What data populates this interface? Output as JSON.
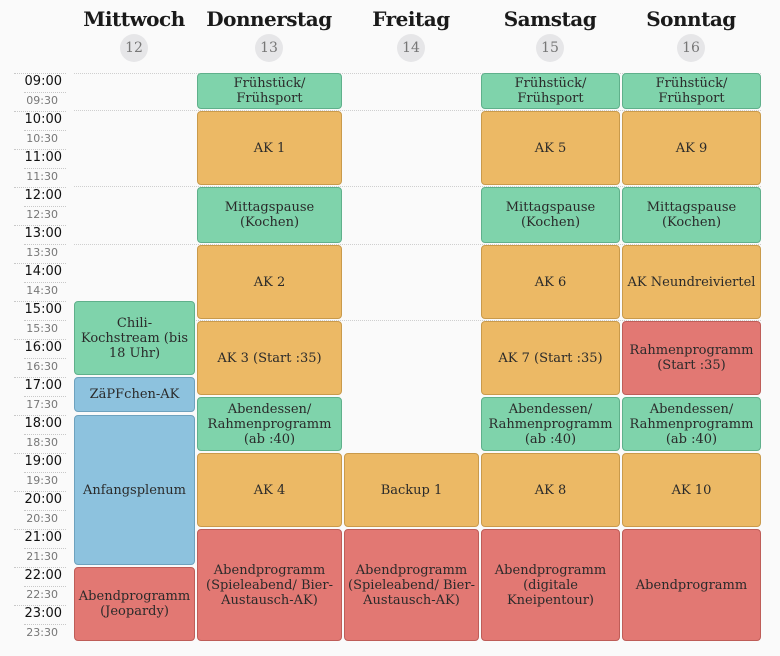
{
  "days": [
    {
      "name": "Mittwoch",
      "num": "12"
    },
    {
      "name": "Donnerstag",
      "num": "13"
    },
    {
      "name": "Freitag",
      "num": "14"
    },
    {
      "name": "Samstag",
      "num": "15"
    },
    {
      "name": "Sonntag",
      "num": "16"
    }
  ],
  "hours": [
    "09:00",
    "10:00",
    "11:00",
    "12:00",
    "13:00",
    "14:00",
    "15:00",
    "16:00",
    "17:00",
    "18:00",
    "19:00",
    "20:00",
    "21:00",
    "22:00",
    "23:00"
  ],
  "halves": [
    "09:30",
    "10:30",
    "11:30",
    "12:30",
    "13:30",
    "14:30",
    "15:30",
    "16:30",
    "17:30",
    "18:30",
    "19:30",
    "20:30",
    "21:30",
    "22:30",
    "23:30"
  ],
  "events": {
    "wed": [
      {
        "label": "Chili-Kochstream (bis 18 Uhr)",
        "color": "green"
      },
      {
        "label": "ZäPFchen-AK",
        "color": "blue"
      },
      {
        "label": "Anfangsplenum",
        "color": "blue"
      },
      {
        "label": "Abendprogramm (Jeopardy)",
        "color": "red"
      }
    ],
    "thu": [
      {
        "label": "Frühstück/ Frühsport",
        "color": "green"
      },
      {
        "label": "AK 1",
        "color": "orange"
      },
      {
        "label": "Mittagspause (Kochen)",
        "color": "green"
      },
      {
        "label": "AK 2",
        "color": "orange"
      },
      {
        "label": "AK 3 (Start :35)",
        "color": "orange"
      },
      {
        "label": "Abendessen/ Rahmenprogramm (ab :40)",
        "color": "green"
      },
      {
        "label": "AK 4",
        "color": "orange"
      },
      {
        "label": "Abendprogramm (Spieleabend/ Bier-Austausch-AK)",
        "color": "red"
      }
    ],
    "fri": [
      {
        "label": "Backup 1",
        "color": "orange"
      },
      {
        "label": "Abendprogramm (Spieleabend/ Bier-Austausch-AK)",
        "color": "red"
      }
    ],
    "sat": [
      {
        "label": "Frühstück/ Frühsport",
        "color": "green"
      },
      {
        "label": "AK 5",
        "color": "orange"
      },
      {
        "label": "Mittagspause (Kochen)",
        "color": "green"
      },
      {
        "label": "AK 6",
        "color": "orange"
      },
      {
        "label": "AK 7 (Start :35)",
        "color": "orange"
      },
      {
        "label": "Abendessen/ Rahmenprogramm (ab :40)",
        "color": "green"
      },
      {
        "label": "AK 8",
        "color": "orange"
      },
      {
        "label": "Abendprogramm (digitale Kneipentour)",
        "color": "red"
      }
    ],
    "sun": [
      {
        "label": "Frühstück/ Frühsport",
        "color": "green"
      },
      {
        "label": "AK 9",
        "color": "orange"
      },
      {
        "label": "Mittagspause (Kochen)",
        "color": "green"
      },
      {
        "label": "AK Neundreiviertel",
        "color": "orange"
      },
      {
        "label": "Rahmenprogramm (Start :35)",
        "color": "red"
      },
      {
        "label": "Abendessen/ Rahmenprogramm (ab :40)",
        "color": "green"
      },
      {
        "label": "AK 10",
        "color": "orange"
      },
      {
        "label": "Abendprogramm",
        "color": "red"
      }
    ]
  }
}
